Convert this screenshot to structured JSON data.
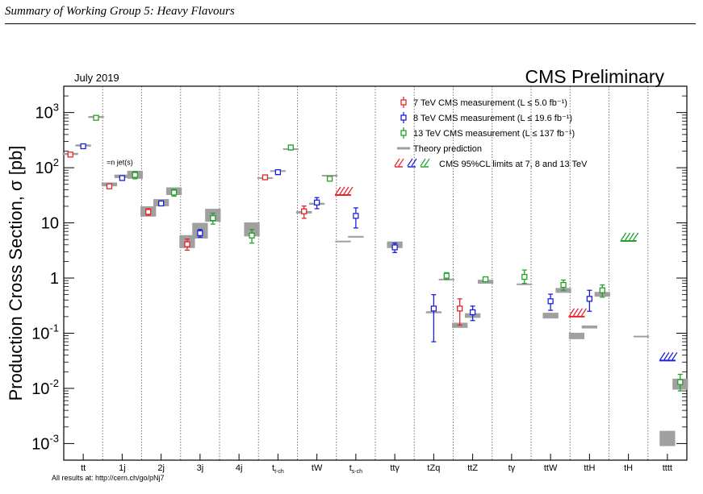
{
  "header": {
    "title": "Summary of Working Group 5: Heavy Flavours"
  },
  "footer": {
    "note": "All results at: http://cern.ch/go/pNj7"
  },
  "chart_data": {
    "type": "scatter",
    "date_label": "July 2019",
    "experiment_label": "CMS Preliminary",
    "ylabel": "Production Cross Section,  σ [pb]",
    "yscale": "log",
    "ylim": [
      0.0005,
      3000
    ],
    "y_ticks": [
      "10^-3",
      "10^-2",
      "10^-1",
      "1",
      "10",
      "10^2",
      "10^3"
    ],
    "annotation": "=n jet(s)",
    "colors": {
      "7TeV": "#e8232a",
      "8TeV": "#1b20e0",
      "13TeV": "#22a12a",
      "theory": "#a0a0a0"
    },
    "categories": [
      {
        "main": "tt",
        "sub": ""
      },
      {
        "main": "1j",
        "sub": ""
      },
      {
        "main": "2j",
        "sub": ""
      },
      {
        "main": "3j",
        "sub": ""
      },
      {
        "main": "4j",
        "sub": ""
      },
      {
        "main": "t",
        "sub": "t-ch"
      },
      {
        "main": "tW",
        "sub": ""
      },
      {
        "main": "t",
        "sub": "s-ch"
      },
      {
        "main": "ttγ",
        "sub": ""
      },
      {
        "main": "tZq",
        "sub": ""
      },
      {
        "main": "ttZ",
        "sub": ""
      },
      {
        "main": "tγ",
        "sub": ""
      },
      {
        "main": "ttW",
        "sub": ""
      },
      {
        "main": "ttH",
        "sub": ""
      },
      {
        "main": "tH",
        "sub": ""
      },
      {
        "main": "tttt",
        "sub": ""
      }
    ],
    "legend": [
      {
        "kind": "marker",
        "energy": "7TeV",
        "text": "7 TeV CMS measurement (L ≤ 5.0 fb⁻¹)"
      },
      {
        "kind": "marker",
        "energy": "8TeV",
        "text": "8 TeV CMS measurement (L ≤ 19.6 fb⁻¹)"
      },
      {
        "kind": "marker",
        "energy": "13TeV",
        "text": "13 TeV CMS measurement (L ≤ 137 fb⁻¹)"
      },
      {
        "kind": "theory",
        "energy": "theory",
        "text": "Theory prediction"
      },
      {
        "kind": "limit",
        "energy": "all",
        "text": "CMS 95%CL limits at 7, 8 and 13 TeV"
      }
    ],
    "series": [
      {
        "name": "7 TeV CMS measurement",
        "energy": "7TeV",
        "points": [
          {
            "cat": 0,
            "y": 173,
            "lo": 160,
            "hi": 186
          },
          {
            "cat": 1,
            "y": 46,
            "lo": 42,
            "hi": 50
          },
          {
            "cat": 2,
            "y": 15.8,
            "lo": 13.8,
            "hi": 18
          },
          {
            "cat": 3,
            "y": 4.1,
            "lo": 3.2,
            "hi": 5.1
          },
          {
            "cat": 5,
            "y": 67,
            "lo": 61,
            "hi": 73
          },
          {
            "cat": 6,
            "y": 16.2,
            "lo": 12.1,
            "hi": 20.2
          },
          {
            "cat": 10,
            "y": 0.28,
            "lo": 0.14,
            "hi": 0.42
          }
        ]
      },
      {
        "name": "8 TeV CMS measurement",
        "energy": "8TeV",
        "points": [
          {
            "cat": 0,
            "y": 245,
            "lo": 232,
            "hi": 258
          },
          {
            "cat": 1,
            "y": 65,
            "lo": 60,
            "hi": 70
          },
          {
            "cat": 2,
            "y": 22.5,
            "lo": 20.5,
            "hi": 25
          },
          {
            "cat": 3,
            "y": 6.5,
            "lo": 5.5,
            "hi": 7.6
          },
          {
            "cat": 5,
            "y": 83,
            "lo": 76,
            "hi": 90
          },
          {
            "cat": 6,
            "y": 23.4,
            "lo": 18.1,
            "hi": 28.7
          },
          {
            "cat": 7,
            "y": 13.4,
            "lo": 8.1,
            "hi": 18.7
          },
          {
            "cat": 8,
            "y": 3.6,
            "lo": 2.9,
            "hi": 4.3
          },
          {
            "cat": 9,
            "y": 0.28,
            "lo": 0.07,
            "hi": 0.5
          },
          {
            "cat": 10,
            "y": 0.24,
            "lo": 0.17,
            "hi": 0.31
          },
          {
            "cat": 12,
            "y": 0.38,
            "lo": 0.26,
            "hi": 0.51
          },
          {
            "cat": 13,
            "y": 0.42,
            "lo": 0.25,
            "hi": 0.6
          }
        ]
      },
      {
        "name": "13 TeV CMS measurement",
        "energy": "13TeV",
        "points": [
          {
            "cat": 0,
            "y": 803,
            "lo": 760,
            "hi": 846
          },
          {
            "cat": 1,
            "y": 74,
            "lo": 63,
            "hi": 85
          },
          {
            "cat": 2,
            "y": 35.5,
            "lo": 30.5,
            "hi": 40.5
          },
          {
            "cat": 3,
            "y": 12.2,
            "lo": 9.5,
            "hi": 15
          },
          {
            "cat": 4,
            "y": 5.9,
            "lo": 4.3,
            "hi": 7.6
          },
          {
            "cat": 5,
            "y": 233,
            "lo": 210,
            "hi": 256
          },
          {
            "cat": 6,
            "y": 63,
            "lo": 57,
            "hi": 69
          },
          {
            "cat": 9,
            "y": 1.1,
            "lo": 0.95,
            "hi": 1.25
          },
          {
            "cat": 10,
            "y": 0.95,
            "lo": 0.87,
            "hi": 1.03
          },
          {
            "cat": 11,
            "y": 1.05,
            "lo": 0.8,
            "hi": 1.4
          },
          {
            "cat": 12,
            "y": 0.75,
            "lo": 0.6,
            "hi": 0.92
          },
          {
            "cat": 13,
            "y": 0.6,
            "lo": 0.45,
            "hi": 0.75
          },
          {
            "cat": 15,
            "y": 0.013,
            "lo": 0.009,
            "hi": 0.018
          }
        ]
      }
    ],
    "theory": [
      {
        "cat": 0,
        "energy": "7TeV",
        "y": 178,
        "lo": 170,
        "hi": 186
      },
      {
        "cat": 0,
        "energy": "8TeV",
        "y": 253,
        "lo": 242,
        "hi": 264
      },
      {
        "cat": 0,
        "energy": "13TeV",
        "y": 832,
        "lo": 800,
        "hi": 866
      },
      {
        "cat": 1,
        "energy": "7TeV",
        "y": 50,
        "lo": 46,
        "hi": 54
      },
      {
        "cat": 1,
        "energy": "8TeV",
        "y": 70,
        "lo": 65,
        "hi": 75
      },
      {
        "cat": 1,
        "energy": "13TeV",
        "y": 75,
        "lo": 63,
        "hi": 88
      },
      {
        "cat": 2,
        "energy": "7TeV",
        "y": 16,
        "lo": 13,
        "hi": 20
      },
      {
        "cat": 2,
        "energy": "8TeV",
        "y": 23,
        "lo": 20,
        "hi": 27
      },
      {
        "cat": 2,
        "energy": "13TeV",
        "y": 38,
        "lo": 32,
        "hi": 44
      },
      {
        "cat": 3,
        "energy": "7TeV",
        "y": 4.5,
        "lo": 3.5,
        "hi": 6
      },
      {
        "cat": 3,
        "energy": "8TeV",
        "y": 7.5,
        "lo": 5.2,
        "hi": 10
      },
      {
        "cat": 3,
        "energy": "13TeV",
        "y": 14,
        "lo": 10.5,
        "hi": 18
      },
      {
        "cat": 4,
        "energy": "13TeV",
        "y": 7.5,
        "lo": 5.7,
        "hi": 10.2
      },
      {
        "cat": 5,
        "energy": "7TeV",
        "y": 65,
        "lo": 63,
        "hi": 67
      },
      {
        "cat": 5,
        "energy": "8TeV",
        "y": 87,
        "lo": 84,
        "hi": 90
      },
      {
        "cat": 5,
        "energy": "13TeV",
        "y": 217,
        "lo": 211,
        "hi": 223
      },
      {
        "cat": 6,
        "energy": "7TeV",
        "y": 15.6,
        "lo": 14.8,
        "hi": 16.4
      },
      {
        "cat": 6,
        "energy": "8TeV",
        "y": 22.2,
        "lo": 21.3,
        "hi": 23.1
      },
      {
        "cat": 6,
        "energy": "13TeV",
        "y": 71.7,
        "lo": 69.5,
        "hi": 73.9
      },
      {
        "cat": 7,
        "energy": "7TeV",
        "y": 4.6,
        "lo": 4.45,
        "hi": 4.75
      },
      {
        "cat": 7,
        "energy": "8TeV",
        "y": 5.6,
        "lo": 5.4,
        "hi": 5.8
      },
      {
        "cat": 8,
        "energy": "8TeV",
        "y": 4.0,
        "lo": 3.5,
        "hi": 4.6
      },
      {
        "cat": 9,
        "energy": "8TeV",
        "y": 0.24,
        "lo": 0.23,
        "hi": 0.25
      },
      {
        "cat": 9,
        "energy": "13TeV",
        "y": 0.94,
        "lo": 0.91,
        "hi": 0.97
      },
      {
        "cat": 10,
        "energy": "7TeV",
        "y": 0.14,
        "lo": 0.125,
        "hi": 0.155
      },
      {
        "cat": 10,
        "energy": "8TeV",
        "y": 0.21,
        "lo": 0.19,
        "hi": 0.23
      },
      {
        "cat": 10,
        "energy": "13TeV",
        "y": 0.86,
        "lo": 0.79,
        "hi": 0.93
      },
      {
        "cat": 11,
        "energy": "13TeV",
        "y": 0.77,
        "lo": 0.745,
        "hi": 0.795
      },
      {
        "cat": 12,
        "energy": "8TeV",
        "y": 0.21,
        "lo": 0.185,
        "hi": 0.235
      },
      {
        "cat": 12,
        "energy": "13TeV",
        "y": 0.6,
        "lo": 0.54,
        "hi": 0.66
      },
      {
        "cat": 13,
        "energy": "7TeV",
        "y": 0.09,
        "lo": 0.078,
        "hi": 0.102
      },
      {
        "cat": 13,
        "energy": "8TeV",
        "y": 0.13,
        "lo": 0.122,
        "hi": 0.138
      },
      {
        "cat": 13,
        "energy": "13TeV",
        "y": 0.51,
        "lo": 0.46,
        "hi": 0.56
      },
      {
        "cat": 14,
        "energy": "13TeV",
        "y": 0.087,
        "lo": 0.0855,
        "hi": 0.0885
      },
      {
        "cat": 15,
        "energy": "8TeV",
        "y": 0.0012,
        "lo": 0.0009,
        "hi": 0.0017
      },
      {
        "cat": 15,
        "energy": "13TeV",
        "y": 0.012,
        "lo": 0.0095,
        "hi": 0.015
      }
    ],
    "limits": [
      {
        "cat": 7,
        "energy": "7TeV",
        "y": 32
      },
      {
        "cat": 13,
        "energy": "7TeV",
        "y": 0.2
      },
      {
        "cat": 14,
        "energy": "13TeV",
        "y": 4.7
      },
      {
        "cat": 15,
        "energy": "8TeV",
        "y": 0.032
      }
    ]
  }
}
